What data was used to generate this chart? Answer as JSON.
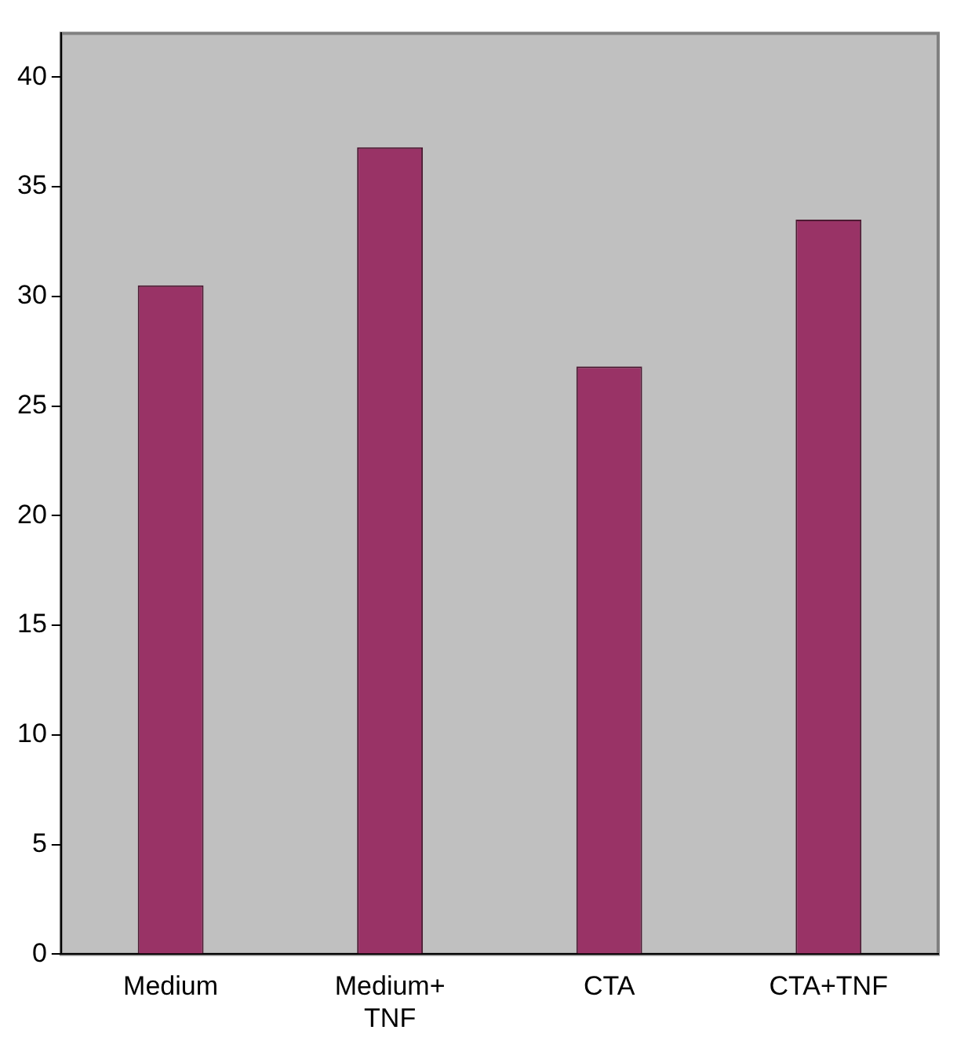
{
  "chart_data": {
    "type": "bar",
    "categories": [
      "Medium",
      "Medium+ TNF",
      "CTA",
      "CTA+TNF"
    ],
    "values": [
      30.5,
      36.8,
      26.8,
      33.5
    ],
    "color": "#993366",
    "ylim": [
      0,
      42
    ],
    "yticks": [
      0,
      5,
      10,
      15,
      20,
      25,
      30,
      35,
      40
    ],
    "grid": false,
    "legend": false
  }
}
